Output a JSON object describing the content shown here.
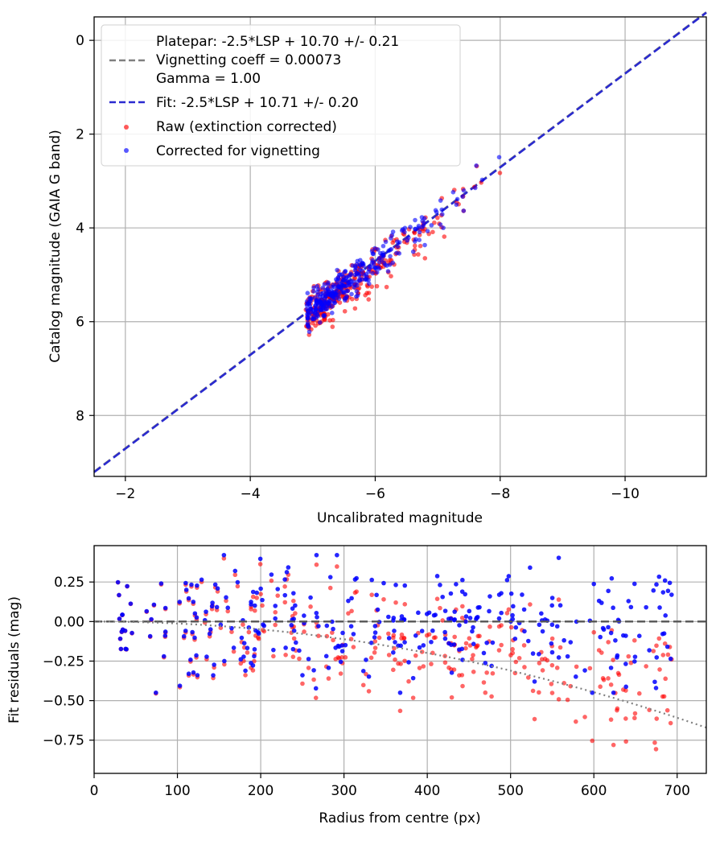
{
  "chart_data": [
    {
      "type": "scatter",
      "xlabel": "Uncalibrated magnitude",
      "ylabel": "Catalog magnitude (GAIA G band)",
      "xlim": [
        -1.5,
        -11.3
      ],
      "ylim": [
        9.3,
        -0.5
      ],
      "x_inverted": true,
      "y_inverted": true,
      "xticks": [
        -2,
        -4,
        -6,
        -8,
        -10
      ],
      "xtick_labels": [
        "−2",
        "−4",
        "−6",
        "−8",
        "−10"
      ],
      "yticks": [
        0,
        2,
        4,
        6,
        8
      ],
      "ytick_labels": [
        "0",
        "2",
        "4",
        "6",
        "8"
      ],
      "grid": true,
      "legend_placement": "top-left",
      "legend": {
        "platepar_line1": "Platepar: -2.5*LSP + 10.70 +/- 0.21",
        "platepar_line2": "Vignetting coeff = 0.00073",
        "platepar_line3": "Gamma = 1.00",
        "fit": "Fit: -2.5*LSP + 10.71 +/- 0.20",
        "raw": "Raw (extinction corrected)",
        "corrected": "Corrected for vignetting"
      },
      "lines": [
        {
          "name": "Platepar",
          "slope": -2.5,
          "intercept": 10.7,
          "color": "#808080",
          "style": "dashed"
        },
        {
          "name": "Fit",
          "slope": -2.5,
          "intercept": 10.71,
          "color": "#2a2ad0",
          "style": "dashed"
        }
      ],
      "series": [
        {
          "name": "Raw (extinction corrected)",
          "color": "#ff0000",
          "cloud": {
            "x_range": [
              -4.9,
              -7.8
            ],
            "y_at_x_start": 5.6,
            "slope_dy_dx": 1.0,
            "scatter": 0.35,
            "count": 330
          }
        },
        {
          "name": "Corrected for vignetting",
          "color": "#0000ff",
          "cloud": {
            "x_range": [
              -4.9,
              -8.2
            ],
            "y_at_x_start": 5.95,
            "slope_dy_dx": 1.0,
            "scatter": 0.25,
            "count": 330
          }
        }
      ]
    },
    {
      "type": "scatter",
      "xlabel": "Radius from centre (px)",
      "ylabel": "Fit residuals (mag)",
      "xlim": [
        0,
        735
      ],
      "ylim": [
        -0.96,
        0.48
      ],
      "xticks": [
        0,
        100,
        200,
        300,
        400,
        500,
        600,
        700
      ],
      "xtick_labels": [
        "0",
        "100",
        "200",
        "300",
        "400",
        "500",
        "600",
        "700"
      ],
      "yticks": [
        0.25,
        0.0,
        -0.25,
        -0.5,
        -0.75
      ],
      "ytick_labels": [
        "0.25",
        "0.00",
        "−0.25",
        "−0.50",
        "−0.75"
      ],
      "grid": true,
      "reference_line": {
        "y": 0.0,
        "color": "#555555",
        "style": "dashed"
      },
      "vignetting_curve": {
        "coeff": 0.00073,
        "color": "#808080",
        "style": "dotted",
        "x_range": [
          0,
          735
        ]
      },
      "series": [
        {
          "name": "Raw (extinction corrected)",
          "color": "#ff0000"
        },
        {
          "name": "Corrected for vignetting",
          "color": "#0000ff"
        }
      ]
    }
  ]
}
